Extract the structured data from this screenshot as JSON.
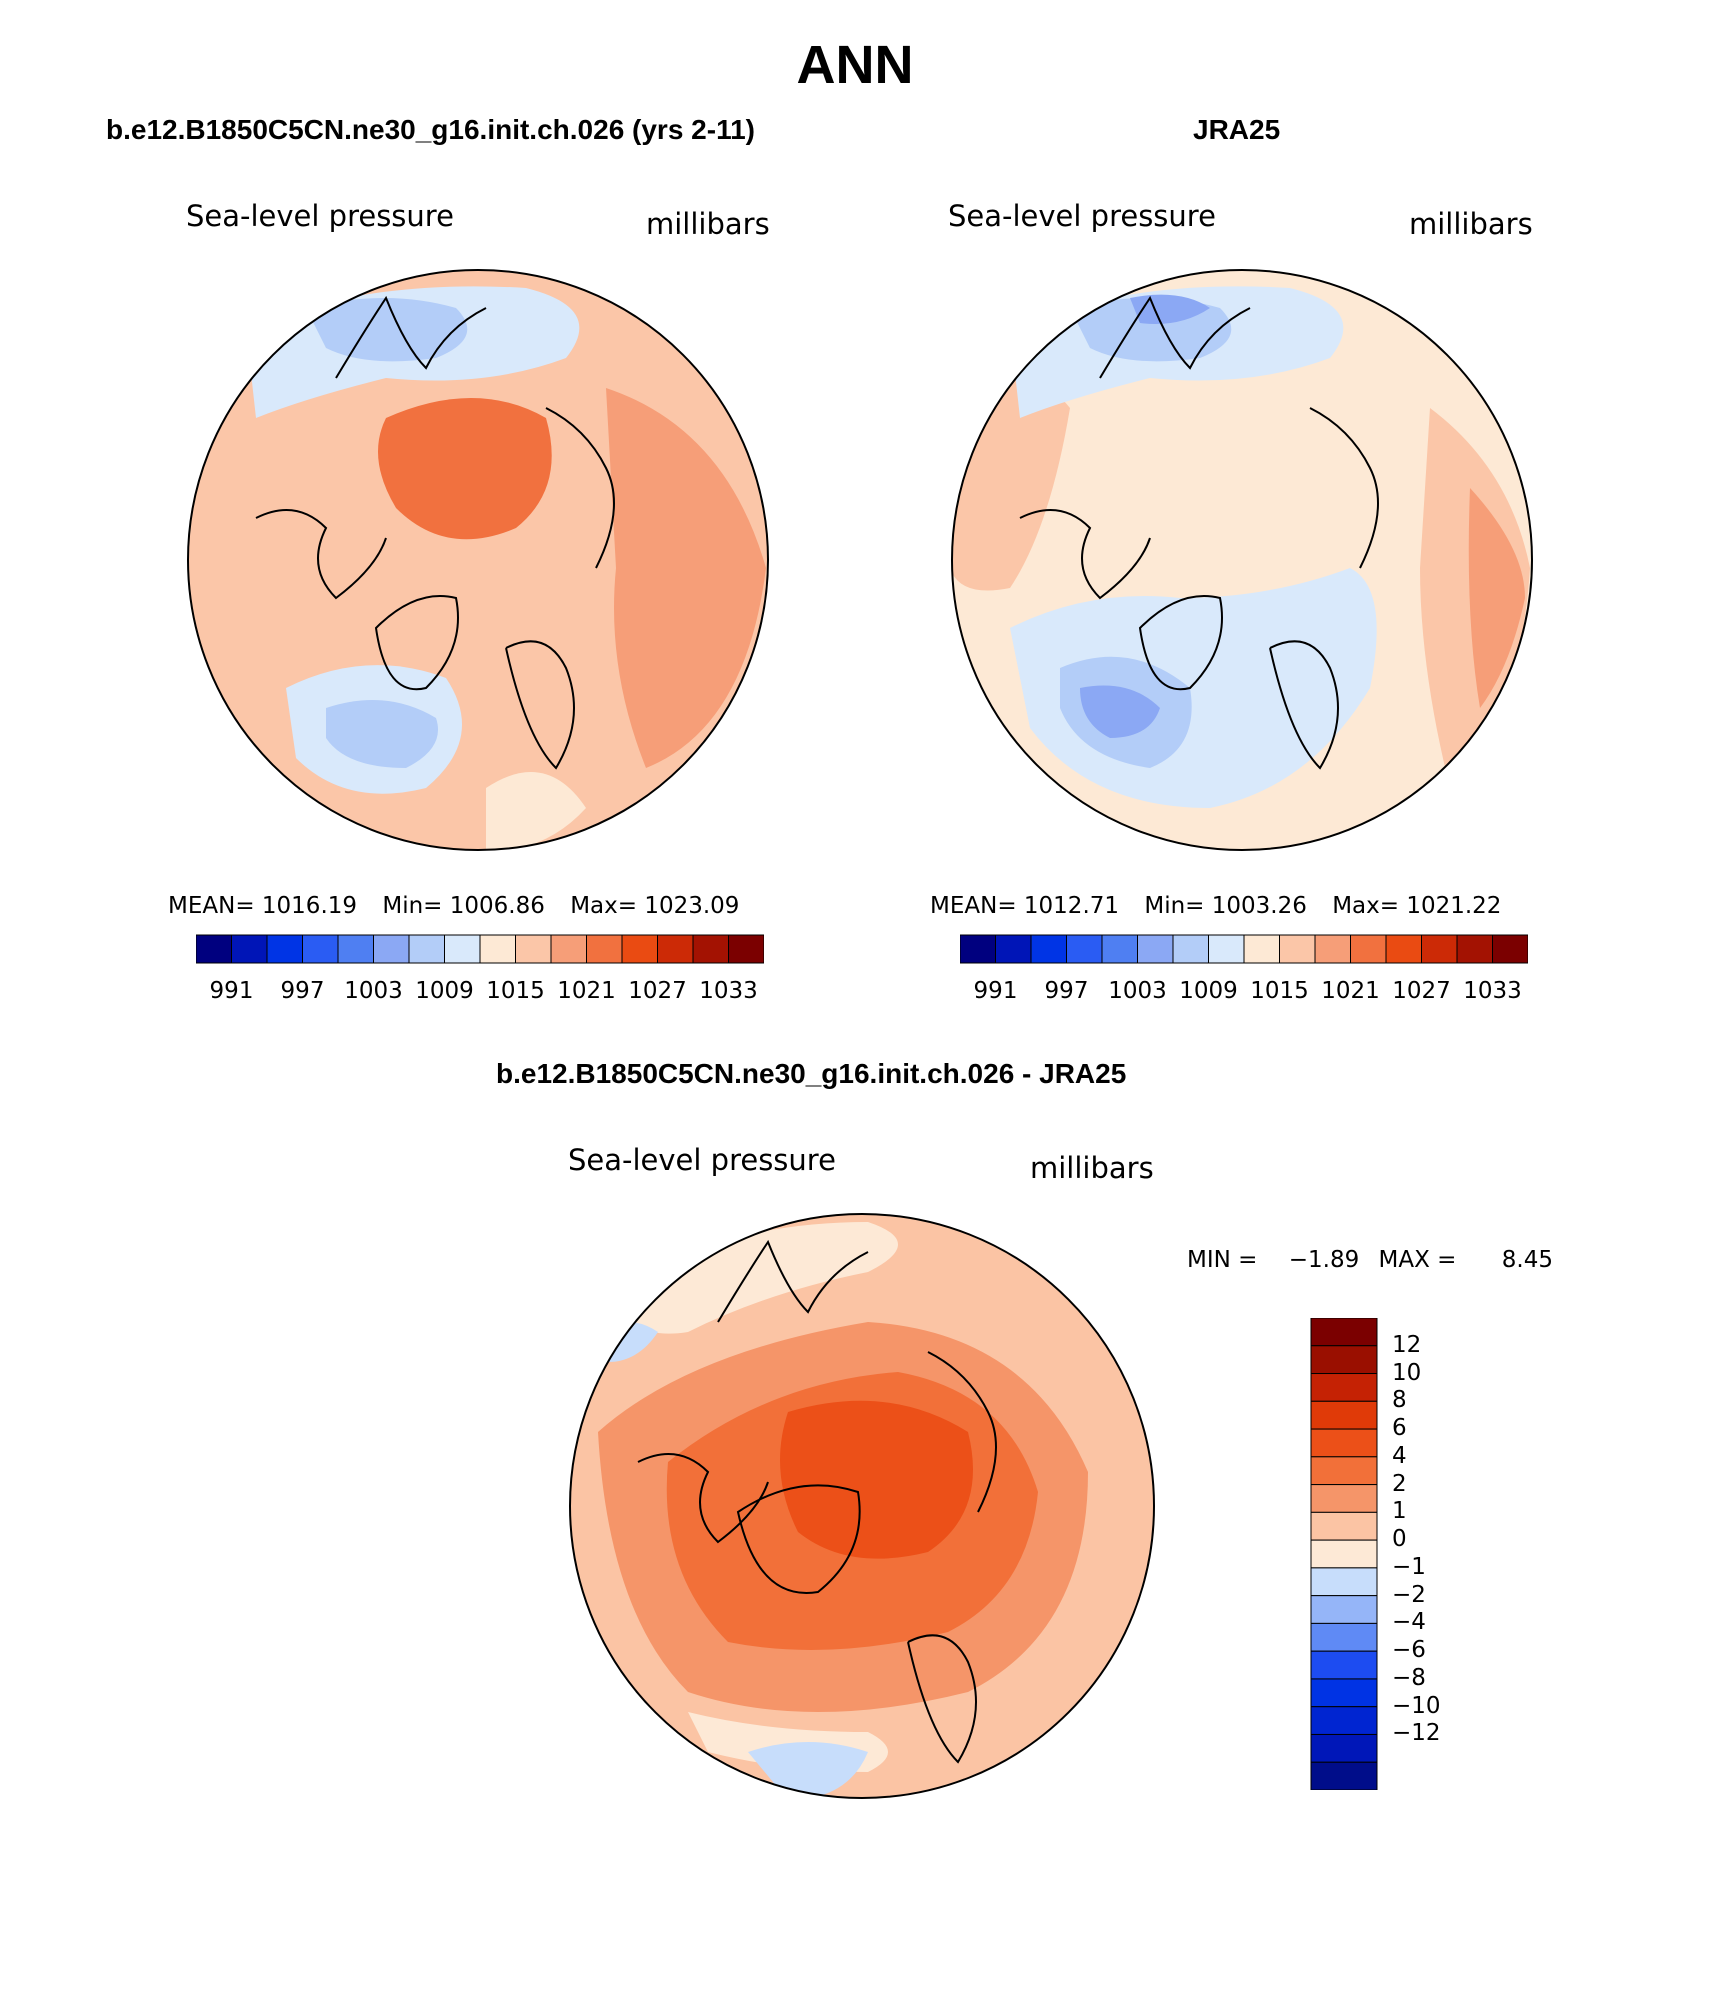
{
  "title": "ANN",
  "colors": {
    "levels15": [
      "#00007f",
      "#0015b7",
      "#0034e5",
      "#2a5cf3",
      "#4f7ff2",
      "#8ba8f4",
      "#b3cdf8",
      "#d9e9fb",
      "#fde9d5",
      "#fbc6a8",
      "#f69e78",
      "#f1713f",
      "#ea4b12",
      "#cc2a06",
      "#a31202",
      "#7b0000"
    ],
    "levels16diff": [
      "#000d8a",
      "#0017b8",
      "#0025d1",
      "#0033e4",
      "#1d4cf1",
      "#5f8af5",
      "#95b5f8",
      "#c7ddfb",
      "#fde9d6",
      "#fbc4a4",
      "#f59569",
      "#f27039",
      "#ec5018",
      "#e03a08",
      "#c52204",
      "#9a0f00",
      "#7b0000"
    ]
  },
  "chart_data": [
    {
      "type": "polar-contour-map",
      "panel_title": "b.e12.B1850C5CN.ne30_g16.init.ch.026 (yrs 2-11)",
      "left_label": "Sea-level pressure",
      "right_label": "millibars",
      "stats": {
        "mean_label": "MEAN=",
        "mean": "1016.19",
        "min_label": "Min=",
        "min": "1006.86",
        "max_label": "Max=",
        "max": "1023.09"
      },
      "colorbar_ticks": [
        "991",
        "997",
        "1003",
        "1009",
        "1015",
        "1021",
        "1027",
        "1033"
      ],
      "regions": [
        {
          "name": "arctic-high",
          "level": 11
        },
        {
          "name": "pacific-high",
          "level": 10
        },
        {
          "name": "aleutian-low",
          "level": 6
        },
        {
          "name": "icelandic-low",
          "level": 5
        }
      ]
    },
    {
      "type": "polar-contour-map",
      "panel_title": "JRA25",
      "left_label": "Sea-level pressure",
      "right_label": "millibars",
      "stats": {
        "mean_label": "MEAN=",
        "mean": "1012.71",
        "min_label": "Min=",
        "min": "1003.26",
        "max_label": "Max=",
        "max": "1021.22"
      },
      "colorbar_ticks": [
        "991",
        "997",
        "1003",
        "1009",
        "1015",
        "1021",
        "1027",
        "1033"
      ],
      "regions": [
        {
          "name": "aleutian-low",
          "level": 5
        },
        {
          "name": "icelandic-low",
          "level": 4
        },
        {
          "name": "pacific-high",
          "level": 10
        }
      ]
    },
    {
      "type": "polar-contour-map-difference",
      "panel_title": "b.e12.B1850C5CN.ne30_g16.init.ch.026 - JRA25",
      "left_label": "Sea-level pressure",
      "right_label": "millibars",
      "stats": {
        "min_label": "MIN =",
        "min": "−1.89",
        "max_label": "MAX =",
        "max": "8.45"
      },
      "colorbar_ticks": [
        "12",
        "10",
        "8",
        "6",
        "4",
        "2",
        "1",
        "0",
        "−1",
        "−2",
        "−4",
        "−6",
        "−8",
        "−10",
        "−12"
      ],
      "regions": [
        {
          "name": "arctic-positive",
          "level": 13
        },
        {
          "name": "eurasia-positive",
          "level": 11
        },
        {
          "name": "atlantic-negative",
          "level": 7
        }
      ]
    }
  ]
}
